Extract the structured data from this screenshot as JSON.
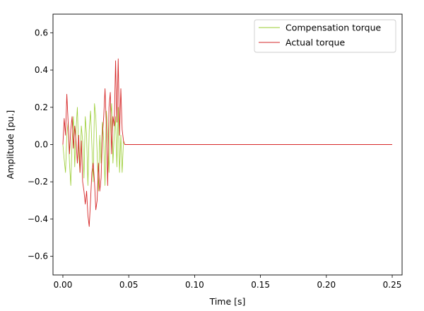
{
  "chart_data": {
    "type": "line",
    "title": "",
    "xlabel": "Time [s]",
    "ylabel": "Amplitude [pu.]",
    "xlim": [
      -0.0075,
      0.2575
    ],
    "ylim": [
      -0.7,
      0.7
    ],
    "xticks": [
      0.0,
      0.05,
      0.1,
      0.15,
      0.2,
      0.25
    ],
    "xtick_labels": [
      "0.00",
      "0.05",
      "0.10",
      "0.15",
      "0.20",
      "0.25"
    ],
    "yticks": [
      -0.6,
      -0.4,
      -0.2,
      0.0,
      0.2,
      0.4,
      0.6
    ],
    "ytick_labels": [
      "−0.6",
      "−0.4",
      "−0.2",
      "0.0",
      "0.2",
      "0.4",
      "0.6"
    ],
    "grid": false,
    "legend_position": "top-right",
    "series": [
      {
        "name": "Compensation torque",
        "color": "#9acd32",
        "x": [
          0.0,
          0.001,
          0.002,
          0.003,
          0.004,
          0.005,
          0.006,
          0.007,
          0.008,
          0.009,
          0.01,
          0.011,
          0.012,
          0.013,
          0.014,
          0.015,
          0.016,
          0.017,
          0.018,
          0.019,
          0.02,
          0.021,
          0.022,
          0.023,
          0.024,
          0.025,
          0.026,
          0.027,
          0.028,
          0.029,
          0.03,
          0.031,
          0.032,
          0.033,
          0.034,
          0.035,
          0.036,
          0.037,
          0.038,
          0.039,
          0.04,
          0.041,
          0.042,
          0.043,
          0.044,
          0.045,
          0.046,
          0.047,
          0.048,
          0.049,
          0.25
        ],
        "y": [
          0.0,
          -0.08,
          -0.15,
          0.05,
          0.12,
          -0.1,
          -0.22,
          0.02,
          0.15,
          -0.12,
          0.08,
          0.2,
          -0.05,
          -0.15,
          0.1,
          0.02,
          -0.18,
          0.15,
          0.05,
          -0.22,
          0.08,
          0.18,
          0.0,
          -0.2,
          0.22,
          0.15,
          -0.05,
          -0.25,
          0.05,
          -0.1,
          0.12,
          0.02,
          -0.22,
          0.18,
          0.08,
          -0.15,
          0.12,
          0.22,
          -0.1,
          0.05,
          0.15,
          -0.12,
          0.2,
          -0.15,
          0.05,
          -0.15,
          0.02,
          0.0,
          0.0,
          0.0,
          0.0
        ]
      },
      {
        "name": "Actual torque",
        "color": "#d62728",
        "x": [
          0.0,
          0.001,
          0.002,
          0.003,
          0.004,
          0.005,
          0.006,
          0.007,
          0.008,
          0.009,
          0.01,
          0.011,
          0.012,
          0.013,
          0.014,
          0.015,
          0.016,
          0.017,
          0.018,
          0.019,
          0.02,
          0.021,
          0.022,
          0.023,
          0.024,
          0.025,
          0.026,
          0.027,
          0.028,
          0.029,
          0.03,
          0.031,
          0.032,
          0.033,
          0.034,
          0.035,
          0.036,
          0.037,
          0.038,
          0.039,
          0.04,
          0.041,
          0.042,
          0.043,
          0.044,
          0.045,
          0.046,
          0.047,
          0.048,
          0.049,
          0.25
        ],
        "y": [
          0.0,
          0.14,
          0.05,
          0.27,
          0.12,
          -0.05,
          0.08,
          0.15,
          -0.02,
          0.1,
          0.02,
          -0.1,
          0.05,
          -0.15,
          0.02,
          -0.2,
          -0.25,
          -0.32,
          -0.25,
          -0.38,
          -0.44,
          -0.3,
          -0.15,
          -0.1,
          -0.2,
          -0.35,
          -0.3,
          -0.1,
          -0.25,
          -0.18,
          0.05,
          0.15,
          0.3,
          0.1,
          -0.22,
          0.2,
          0.28,
          -0.05,
          0.15,
          0.1,
          0.45,
          0.12,
          0.46,
          0.05,
          0.3,
          0.08,
          0.02,
          0.0,
          0.0,
          0.0,
          0.0
        ]
      }
    ]
  }
}
